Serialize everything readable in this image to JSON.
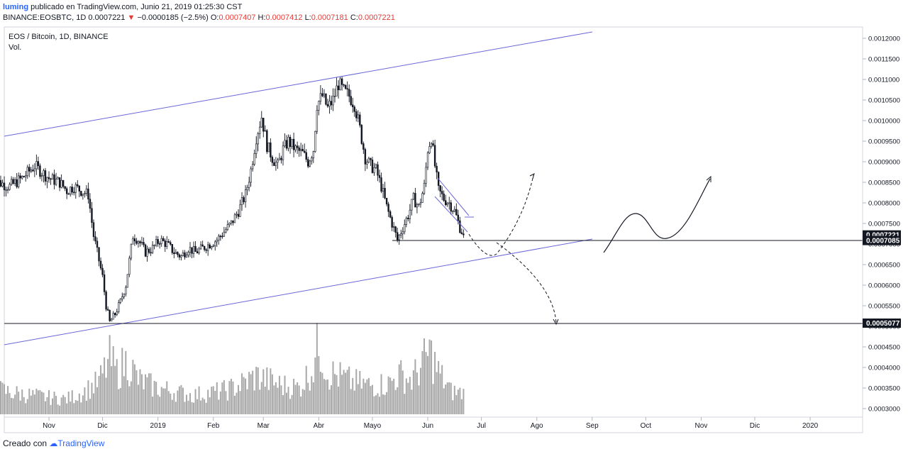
{
  "header": {
    "user": "luming",
    "published": " publicado en TradingView.com, Junio 21, 2019 01:25:30 CST",
    "symbol": "BINANCE:EOSBTC, 1D",
    "last": "0.0007221",
    "arrow": "▼",
    "change": "−0.0000185 (−2.5%)",
    "o_label": "O:",
    "o": "0.0007407",
    "h_label": "H:",
    "h": "0.0007412",
    "l_label": "L:",
    "l": "0.0007181",
    "c_label": "C:",
    "c": "0.0007221"
  },
  "footer": {
    "prefix": "Creado con",
    "brand": "TradingView"
  },
  "chart_data": {
    "type": "candlestick",
    "title": "EOS / Bitcoin, 1D, BINANCE",
    "subtitle": "Vol.",
    "ylim": [
      0.00028,
      0.00124
    ],
    "y_ticks": [
      "0.0003000",
      "0.0003500",
      "0.0004000",
      "0.0004500",
      "0.0005000",
      "0.0005500",
      "0.0006000",
      "0.0006500",
      "0.0007000",
      "0.0007500",
      "0.0008000",
      "0.0008500",
      "0.0009000",
      "0.0009500",
      "0.0010000",
      "0.0010500",
      "0.0011000",
      "0.0011500",
      "0.0012000"
    ],
    "y_tick_values": [
      0.0003,
      0.00035,
      0.0004,
      0.00045,
      0.0005,
      0.00055,
      0.0006,
      0.00065,
      0.0007,
      0.00075,
      0.0008,
      0.00085,
      0.0009,
      0.00095,
      0.001,
      0.00105,
      0.0011,
      0.00115,
      0.0012
    ],
    "x_ticks": [
      "Nov",
      "Dic",
      "2019",
      "Feb",
      "Mar",
      "Abr",
      "Mayo",
      "Jun",
      "Jul",
      "Ago",
      "Sep",
      "Oct",
      "Nov",
      "Dic",
      "2020"
    ],
    "x_tick_days": [
      0,
      30,
      61,
      92,
      120,
      151,
      181,
      212,
      242,
      273,
      304,
      334,
      365,
      395,
      426
    ],
    "price_labels": [
      "0.0007221",
      "0.0007085",
      "0.0005077"
    ],
    "price_label_values": [
      0.0007221,
      0.0007085,
      0.0005077
    ],
    "close_series": [
      {
        "d": -32,
        "v": 0.00089
      },
      {
        "d": -28,
        "v": 0.00085
      },
      {
        "d": -22,
        "v": 0.00084
      },
      {
        "d": -15,
        "v": 0.00086
      },
      {
        "d": -8,
        "v": 0.00089
      },
      {
        "d": 0,
        "v": 0.00086
      },
      {
        "d": 6,
        "v": 0.00085
      },
      {
        "d": 10,
        "v": 0.00083
      },
      {
        "d": 14,
        "v": 0.00084
      },
      {
        "d": 18,
        "v": 0.00083
      },
      {
        "d": 22,
        "v": 0.00082
      },
      {
        "d": 25,
        "v": 0.00072
      },
      {
        "d": 27,
        "v": 0.00068
      },
      {
        "d": 30,
        "v": 0.00062
      },
      {
        "d": 32,
        "v": 0.00055
      },
      {
        "d": 34,
        "v": 0.00051
      },
      {
        "d": 37,
        "v": 0.00053
      },
      {
        "d": 40,
        "v": 0.00056
      },
      {
        "d": 43,
        "v": 0.0006
      },
      {
        "d": 45,
        "v": 0.00066
      },
      {
        "d": 47,
        "v": 0.00072
      },
      {
        "d": 50,
        "v": 0.00071
      },
      {
        "d": 54,
        "v": 0.00068
      },
      {
        "d": 58,
        "v": 0.00069
      },
      {
        "d": 62,
        "v": 0.00071
      },
      {
        "d": 66,
        "v": 0.0007
      },
      {
        "d": 70,
        "v": 0.00068
      },
      {
        "d": 74,
        "v": 0.00067
      },
      {
        "d": 78,
        "v": 0.00069
      },
      {
        "d": 82,
        "v": 0.00068
      },
      {
        "d": 86,
        "v": 0.00069
      },
      {
        "d": 90,
        "v": 0.0007
      },
      {
        "d": 94,
        "v": 0.00071
      },
      {
        "d": 98,
        "v": 0.00073
      },
      {
        "d": 102,
        "v": 0.00075
      },
      {
        "d": 106,
        "v": 0.00078
      },
      {
        "d": 110,
        "v": 0.00082
      },
      {
        "d": 113,
        "v": 0.00088
      },
      {
        "d": 116,
        "v": 0.00096
      },
      {
        "d": 119,
        "v": 0.00101
      },
      {
        "d": 122,
        "v": 0.00094
      },
      {
        "d": 125,
        "v": 0.00091
      },
      {
        "d": 128,
        "v": 0.00089
      },
      {
        "d": 131,
        "v": 0.00093
      },
      {
        "d": 134,
        "v": 0.00095
      },
      {
        "d": 138,
        "v": 0.00093
      },
      {
        "d": 142,
        "v": 0.00092
      },
      {
        "d": 145,
        "v": 0.0009
      },
      {
        "d": 148,
        "v": 0.00093
      },
      {
        "d": 150,
        "v": 0.00104
      },
      {
        "d": 153,
        "v": 0.00106
      },
      {
        "d": 156,
        "v": 0.00103
      },
      {
        "d": 159,
        "v": 0.00105
      },
      {
        "d": 162,
        "v": 0.00109
      },
      {
        "d": 165,
        "v": 0.00107
      },
      {
        "d": 168,
        "v": 0.00106
      },
      {
        "d": 171,
        "v": 0.00104
      },
      {
        "d": 174,
        "v": 0.00098
      },
      {
        "d": 177,
        "v": 0.00091
      },
      {
        "d": 180,
        "v": 0.00089
      },
      {
        "d": 183,
        "v": 0.00088
      },
      {
        "d": 186,
        "v": 0.00084
      },
      {
        "d": 189,
        "v": 0.00079
      },
      {
        "d": 192,
        "v": 0.00075
      },
      {
        "d": 195,
        "v": 0.00071
      },
      {
        "d": 198,
        "v": 0.00074
      },
      {
        "d": 201,
        "v": 0.00077
      },
      {
        "d": 204,
        "v": 0.00081
      },
      {
        "d": 207,
        "v": 0.00079
      },
      {
        "d": 210,
        "v": 0.00084
      },
      {
        "d": 212,
        "v": 0.00093
      },
      {
        "d": 214,
        "v": 0.00096
      },
      {
        "d": 216,
        "v": 0.00089
      },
      {
        "d": 218,
        "v": 0.00083
      },
      {
        "d": 221,
        "v": 0.00081
      },
      {
        "d": 224,
        "v": 0.0008
      },
      {
        "d": 227,
        "v": 0.00078
      },
      {
        "d": 230,
        "v": 0.00074
      },
      {
        "d": 232,
        "v": 0.0007221
      }
    ],
    "volume_series": [
      {
        "d": -32,
        "v": 0.34
      },
      {
        "d": -20,
        "v": 0.28
      },
      {
        "d": -10,
        "v": 0.25
      },
      {
        "d": 0,
        "v": 0.22
      },
      {
        "d": 10,
        "v": 0.2
      },
      {
        "d": 20,
        "v": 0.3
      },
      {
        "d": 28,
        "v": 0.42
      },
      {
        "d": 34,
        "v": 0.72
      },
      {
        "d": 38,
        "v": 0.55
      },
      {
        "d": 44,
        "v": 0.7
      },
      {
        "d": 50,
        "v": 0.45
      },
      {
        "d": 60,
        "v": 0.35
      },
      {
        "d": 70,
        "v": 0.3
      },
      {
        "d": 80,
        "v": 0.25
      },
      {
        "d": 90,
        "v": 0.28
      },
      {
        "d": 100,
        "v": 0.32
      },
      {
        "d": 110,
        "v": 0.42
      },
      {
        "d": 116,
        "v": 0.5
      },
      {
        "d": 122,
        "v": 0.45
      },
      {
        "d": 130,
        "v": 0.38
      },
      {
        "d": 140,
        "v": 0.35
      },
      {
        "d": 148,
        "v": 0.62
      },
      {
        "d": 151,
        "v": 0.95
      },
      {
        "d": 156,
        "v": 0.55
      },
      {
        "d": 162,
        "v": 0.5
      },
      {
        "d": 170,
        "v": 0.42
      },
      {
        "d": 180,
        "v": 0.38
      },
      {
        "d": 190,
        "v": 0.4
      },
      {
        "d": 196,
        "v": 0.52
      },
      {
        "d": 203,
        "v": 0.45
      },
      {
        "d": 210,
        "v": 0.7
      },
      {
        "d": 213,
        "v": 0.82
      },
      {
        "d": 218,
        "v": 0.55
      },
      {
        "d": 225,
        "v": 0.3
      },
      {
        "d": 232,
        "v": 0.28
      }
    ]
  }
}
